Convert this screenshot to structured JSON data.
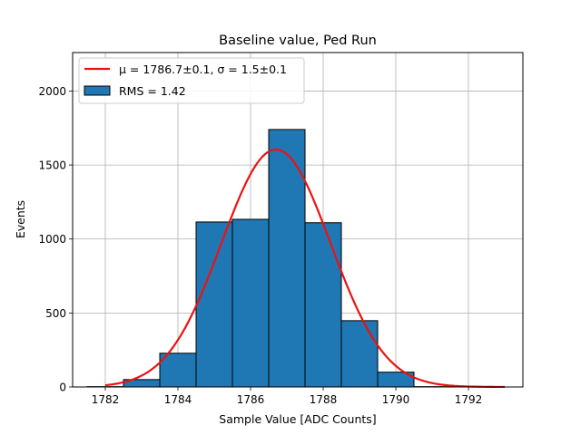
{
  "chart_data": {
    "type": "bar",
    "title": "Baseline value, Ped Run",
    "xlabel": "Sample Value [ADC Counts]",
    "ylabel": "Events",
    "xlim": [
      1781.1,
      1793.5
    ],
    "ylim": [
      0,
      2260
    ],
    "x_ticks": [
      1782,
      1784,
      1786,
      1788,
      1790,
      1792
    ],
    "y_ticks": [
      0,
      500,
      1000,
      1500,
      2000
    ],
    "grid": true,
    "bins": [
      {
        "x0": 1781.5,
        "x1": 1782.5,
        "count": 2
      },
      {
        "x0": 1782.5,
        "x1": 1783.5,
        "count": 50
      },
      {
        "x0": 1783.5,
        "x1": 1784.5,
        "count": 228
      },
      {
        "x0": 1784.5,
        "x1": 1785.5,
        "count": 1115
      },
      {
        "x0": 1785.5,
        "x1": 1786.5,
        "count": 1133
      },
      {
        "x0": 1786.5,
        "x1": 1787.5,
        "count": 1740
      },
      {
        "x0": 1787.5,
        "x1": 1788.5,
        "count": 1110
      },
      {
        "x0": 1788.5,
        "x1": 1789.5,
        "count": 448
      },
      {
        "x0": 1789.5,
        "x1": 1790.5,
        "count": 100
      },
      {
        "x0": 1790.5,
        "x1": 1791.5,
        "count": 2
      }
    ],
    "fit": {
      "type": "gaussian",
      "mu": 1786.7,
      "sigma": 1.5,
      "amplitude": 1605,
      "x_range": [
        1782,
        1793
      ]
    },
    "bar_color": "#1f77b4",
    "bar_edge_color": "#000000",
    "fit_color": "#ee1111",
    "legend": {
      "position": "top-left",
      "entries": [
        {
          "label": "μ = 1786.7±0.1, σ = 1.5±0.1",
          "kind": "line"
        },
        {
          "label": "RMS = 1.42",
          "kind": "patch"
        }
      ]
    }
  }
}
